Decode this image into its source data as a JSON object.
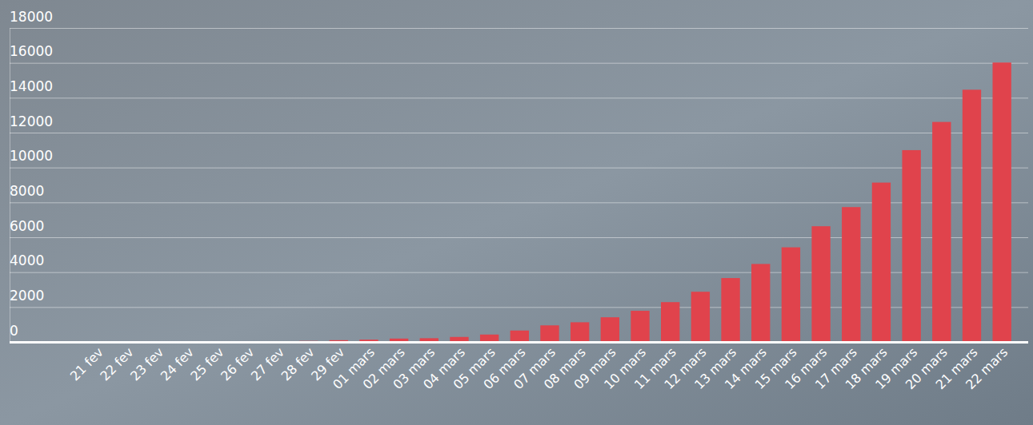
{
  "chart_data": {
    "type": "bar",
    "categories": [
      "21 fev",
      "22 fev",
      "23 fev",
      "24 fev",
      "25 fev",
      "26 fev",
      "27 fev",
      "28 fev",
      "29 fev",
      "01 mars",
      "02 mars",
      "03 mars",
      "04 mars",
      "05 mars",
      "06 mars",
      "07 mars",
      "08 mars",
      "09 mars",
      "10 mars",
      "11 mars",
      "12 mars",
      "13 mars",
      "14 mars",
      "15 mars",
      "16 mars",
      "17 mars",
      "18 mars",
      "19 mars",
      "20 mars",
      "21 mars",
      "22 mars"
    ],
    "values": [
      12,
      12,
      12,
      12,
      14,
      18,
      38,
      57,
      100,
      130,
      191,
      212,
      285,
      423,
      653,
      949,
      1126,
      1412,
      1784,
      2281,
      2876,
      3661,
      4469,
      5423,
      6633,
      7730,
      9134,
      10995,
      12612,
      14459,
      16018
    ],
    "color": "#e0434c",
    "ylim": [
      0,
      18000
    ],
    "yticks": [
      0,
      2000,
      4000,
      6000,
      8000,
      10000,
      12000,
      14000,
      16000,
      18000
    ],
    "grid": true
  }
}
